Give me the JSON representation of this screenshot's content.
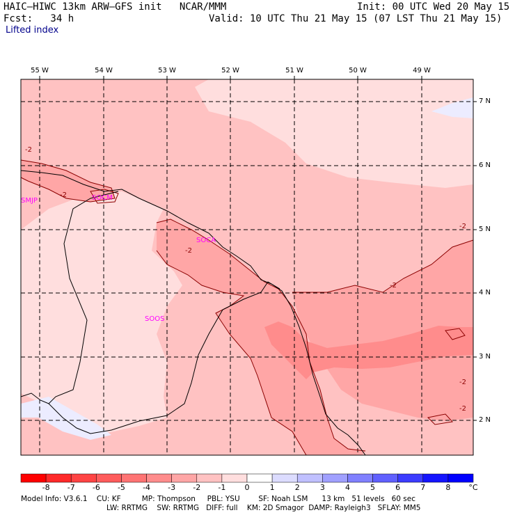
{
  "header": {
    "model_line": "HAIC–HIWC 13km ARW–GFS init   NCAR/MMM",
    "fcst_line": "Fcst:   34 h",
    "init_line": "Init: 00 UTC Wed 20 May 15",
    "valid_line": "Valid: 10 UTC Thu 21 May 15 (07 LST Thu 21 May 15)",
    "field": "Lifted index"
  },
  "lon_labels": [
    "55 W",
    "54 W",
    "53 W",
    "52 W",
    "51 W",
    "50 W",
    "49 W"
  ],
  "lat_labels": [
    "7 N",
    "6 N",
    "5 N",
    "4 N",
    "3 N",
    "2 N"
  ],
  "stations": [
    "SMJP",
    "SOCM",
    "SOCA",
    "SOOS"
  ],
  "contour_labels": [
    "-2",
    "-2",
    "-2",
    "-2",
    "-2",
    "-2",
    "-2"
  ],
  "colorbar": {
    "labels": [
      "-8",
      "-7",
      "-6",
      "-5",
      "-4",
      "-3",
      "-2",
      "-1",
      "0",
      "1",
      "2",
      "3",
      "4",
      "5",
      "6",
      "7",
      "8"
    ],
    "unit": "°C",
    "colors": [
      "#ff0000",
      "#ff2a2a",
      "#ff4444",
      "#ff5c5c",
      "#ff7474",
      "#ff8c8c",
      "#ffa6a6",
      "#ffc2c2",
      "#ffdede",
      "#ffffff",
      "#dcdcff",
      "#c0c0ff",
      "#a0a0ff",
      "#8080ff",
      "#6060ff",
      "#3c3cff",
      "#1414ff",
      "#0000ff"
    ]
  },
  "footer": {
    "line1": "Model Info: V3.6.1    CU: KF         MP: Thompson     PBL: YSU        SF: Noah LSM      13 km   51 levels   60 sec",
    "line2": "LW: RRTMG    SW: RRTMG   DIFF: full    KM: 2D Smagor  DAMP: Rayleigh3   SFLAY: MM5"
  },
  "colors": {
    "fill_light": "#ffdede",
    "fill_mid": "#ffc2c2",
    "fill_strong": "#ffa6a6",
    "fill_stronger": "#ff8c8c",
    "fill_blue": "#ececff",
    "contour": "#8b0000",
    "station": "#ff00ff"
  }
}
